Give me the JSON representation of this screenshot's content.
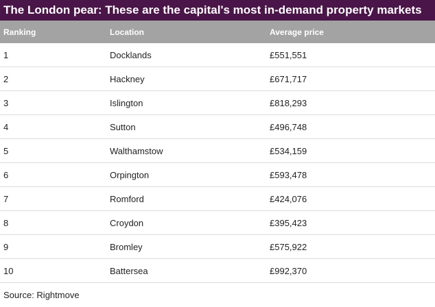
{
  "title": "The London pear: These are the capital's most in-demand property markets",
  "columns": [
    "Ranking",
    "Location",
    "Average price"
  ],
  "rows": [
    {
      "rank": "1",
      "location": "Docklands",
      "price": "£551,551"
    },
    {
      "rank": "2",
      "location": "Hackney",
      "price": "£671,717"
    },
    {
      "rank": "3",
      "location": "Islington",
      "price": "£818,293"
    },
    {
      "rank": "4",
      "location": "Sutton",
      "price": "£496,748"
    },
    {
      "rank": "5",
      "location": "Walthamstow",
      "price": "£534,159"
    },
    {
      "rank": "6",
      "location": "Orpington",
      "price": "£593,478"
    },
    {
      "rank": "7",
      "location": "Romford",
      "price": "£424,076"
    },
    {
      "rank": "8",
      "location": "Croydon",
      "price": "£395,423"
    },
    {
      "rank": "9",
      "location": "Bromley",
      "price": "£575,922"
    },
    {
      "rank": "10",
      "location": "Battersea",
      "price": "£992,370"
    }
  ],
  "source": "Source: Rightmove",
  "colors": {
    "title_background": "#4a1548",
    "header_background": "#a3a3a3"
  },
  "chart_data": {
    "type": "table",
    "title": "The London pear: These are the capital's most in-demand property markets",
    "columns": [
      "Ranking",
      "Location",
      "Average price"
    ],
    "rows": [
      [
        1,
        "Docklands",
        551551
      ],
      [
        2,
        "Hackney",
        671717
      ],
      [
        3,
        "Islington",
        818293
      ],
      [
        4,
        "Sutton",
        496748
      ],
      [
        5,
        "Walthamstow",
        534159
      ],
      [
        6,
        "Orpington",
        593478
      ],
      [
        7,
        "Romford",
        424076
      ],
      [
        8,
        "Croydon",
        395423
      ],
      [
        9,
        "Bromley",
        575922
      ],
      [
        10,
        "Battersea",
        992370
      ]
    ],
    "source": "Source: Rightmove"
  }
}
